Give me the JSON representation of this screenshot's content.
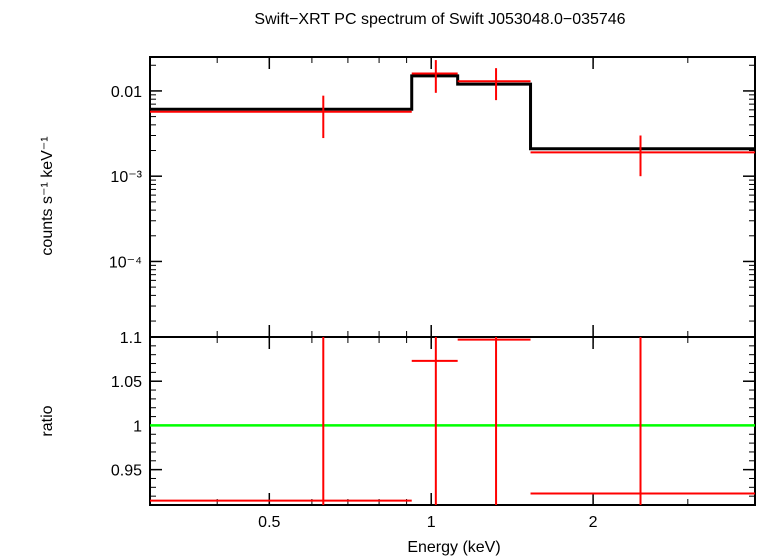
{
  "chart_data": {
    "type": "scatter",
    "title": "Swift−XRT PC spectrum of Swift J053048.0−035746",
    "xlabel": "Energy (keV)",
    "xscale": "log",
    "xlim": [
      0.3,
      4.0
    ],
    "xticks": [
      {
        "value": 0.5,
        "label": "0.5"
      },
      {
        "value": 1,
        "label": "1"
      },
      {
        "value": 2,
        "label": "2"
      }
    ],
    "panels": [
      {
        "id": "spectrum",
        "ylabel": "counts s⁻¹ keV⁻¹",
        "yscale": "log",
        "ylim": [
          1.3e-05,
          0.025
        ],
        "yticks": [
          {
            "value": 0.01,
            "label": "0.01"
          },
          {
            "value": 0.001,
            "label": "10⁻³"
          },
          {
            "value": 0.0001,
            "label": "10⁻⁴"
          }
        ],
        "data": [
          {
            "x": 0.63,
            "xlo": 0.3,
            "xhi": 0.92,
            "y": 0.0057,
            "ylo": 0.0028,
            "yhi": 0.0088
          },
          {
            "x": 1.02,
            "xlo": 0.92,
            "xhi": 1.12,
            "y": 0.016,
            "ylo": 0.0095,
            "yhi": 0.023
          },
          {
            "x": 1.32,
            "xlo": 1.12,
            "xhi": 1.53,
            "y": 0.013,
            "ylo": 0.0078,
            "yhi": 0.0185
          },
          {
            "x": 2.45,
            "xlo": 1.53,
            "xhi": 4.0,
            "y": 0.0019,
            "ylo": 0.001,
            "yhi": 0.003
          }
        ],
        "model": [
          {
            "xlo": 0.3,
            "xhi": 0.92,
            "y": 0.0061
          },
          {
            "xlo": 0.92,
            "xhi": 1.12,
            "y": 0.015
          },
          {
            "xlo": 1.12,
            "xhi": 1.53,
            "y": 0.012
          },
          {
            "xlo": 1.53,
            "xhi": 4.0,
            "y": 0.0021
          }
        ]
      },
      {
        "id": "ratio",
        "ylabel": "ratio",
        "yscale": "linear",
        "ylim": [
          0.91,
          1.1
        ],
        "yticks": [
          {
            "value": 1.1,
            "label": "1.1"
          },
          {
            "value": 1.05,
            "label": "1.05"
          },
          {
            "value": 1.0,
            "label": "1"
          },
          {
            "value": 0.95,
            "label": "0.95"
          }
        ],
        "reference_line": 1.0,
        "data": [
          {
            "x": 0.63,
            "xlo": 0.3,
            "xhi": 0.92,
            "y": 0.915,
            "ylo": 0.5,
            "yhi": 1.5
          },
          {
            "x": 1.02,
            "xlo": 0.92,
            "xhi": 1.12,
            "y": 1.073,
            "ylo": 0.5,
            "yhi": 1.5
          },
          {
            "x": 1.32,
            "xlo": 1.12,
            "xhi": 1.53,
            "y": 1.097,
            "ylo": 0.5,
            "yhi": 1.5
          },
          {
            "x": 2.45,
            "xlo": 1.53,
            "xhi": 4.0,
            "y": 0.923,
            "ylo": 0.5,
            "yhi": 1.5
          }
        ]
      }
    ],
    "colors": {
      "data": "#ff0000",
      "model": "#000000",
      "reference": "#00ff00",
      "frame": "#000000"
    }
  }
}
